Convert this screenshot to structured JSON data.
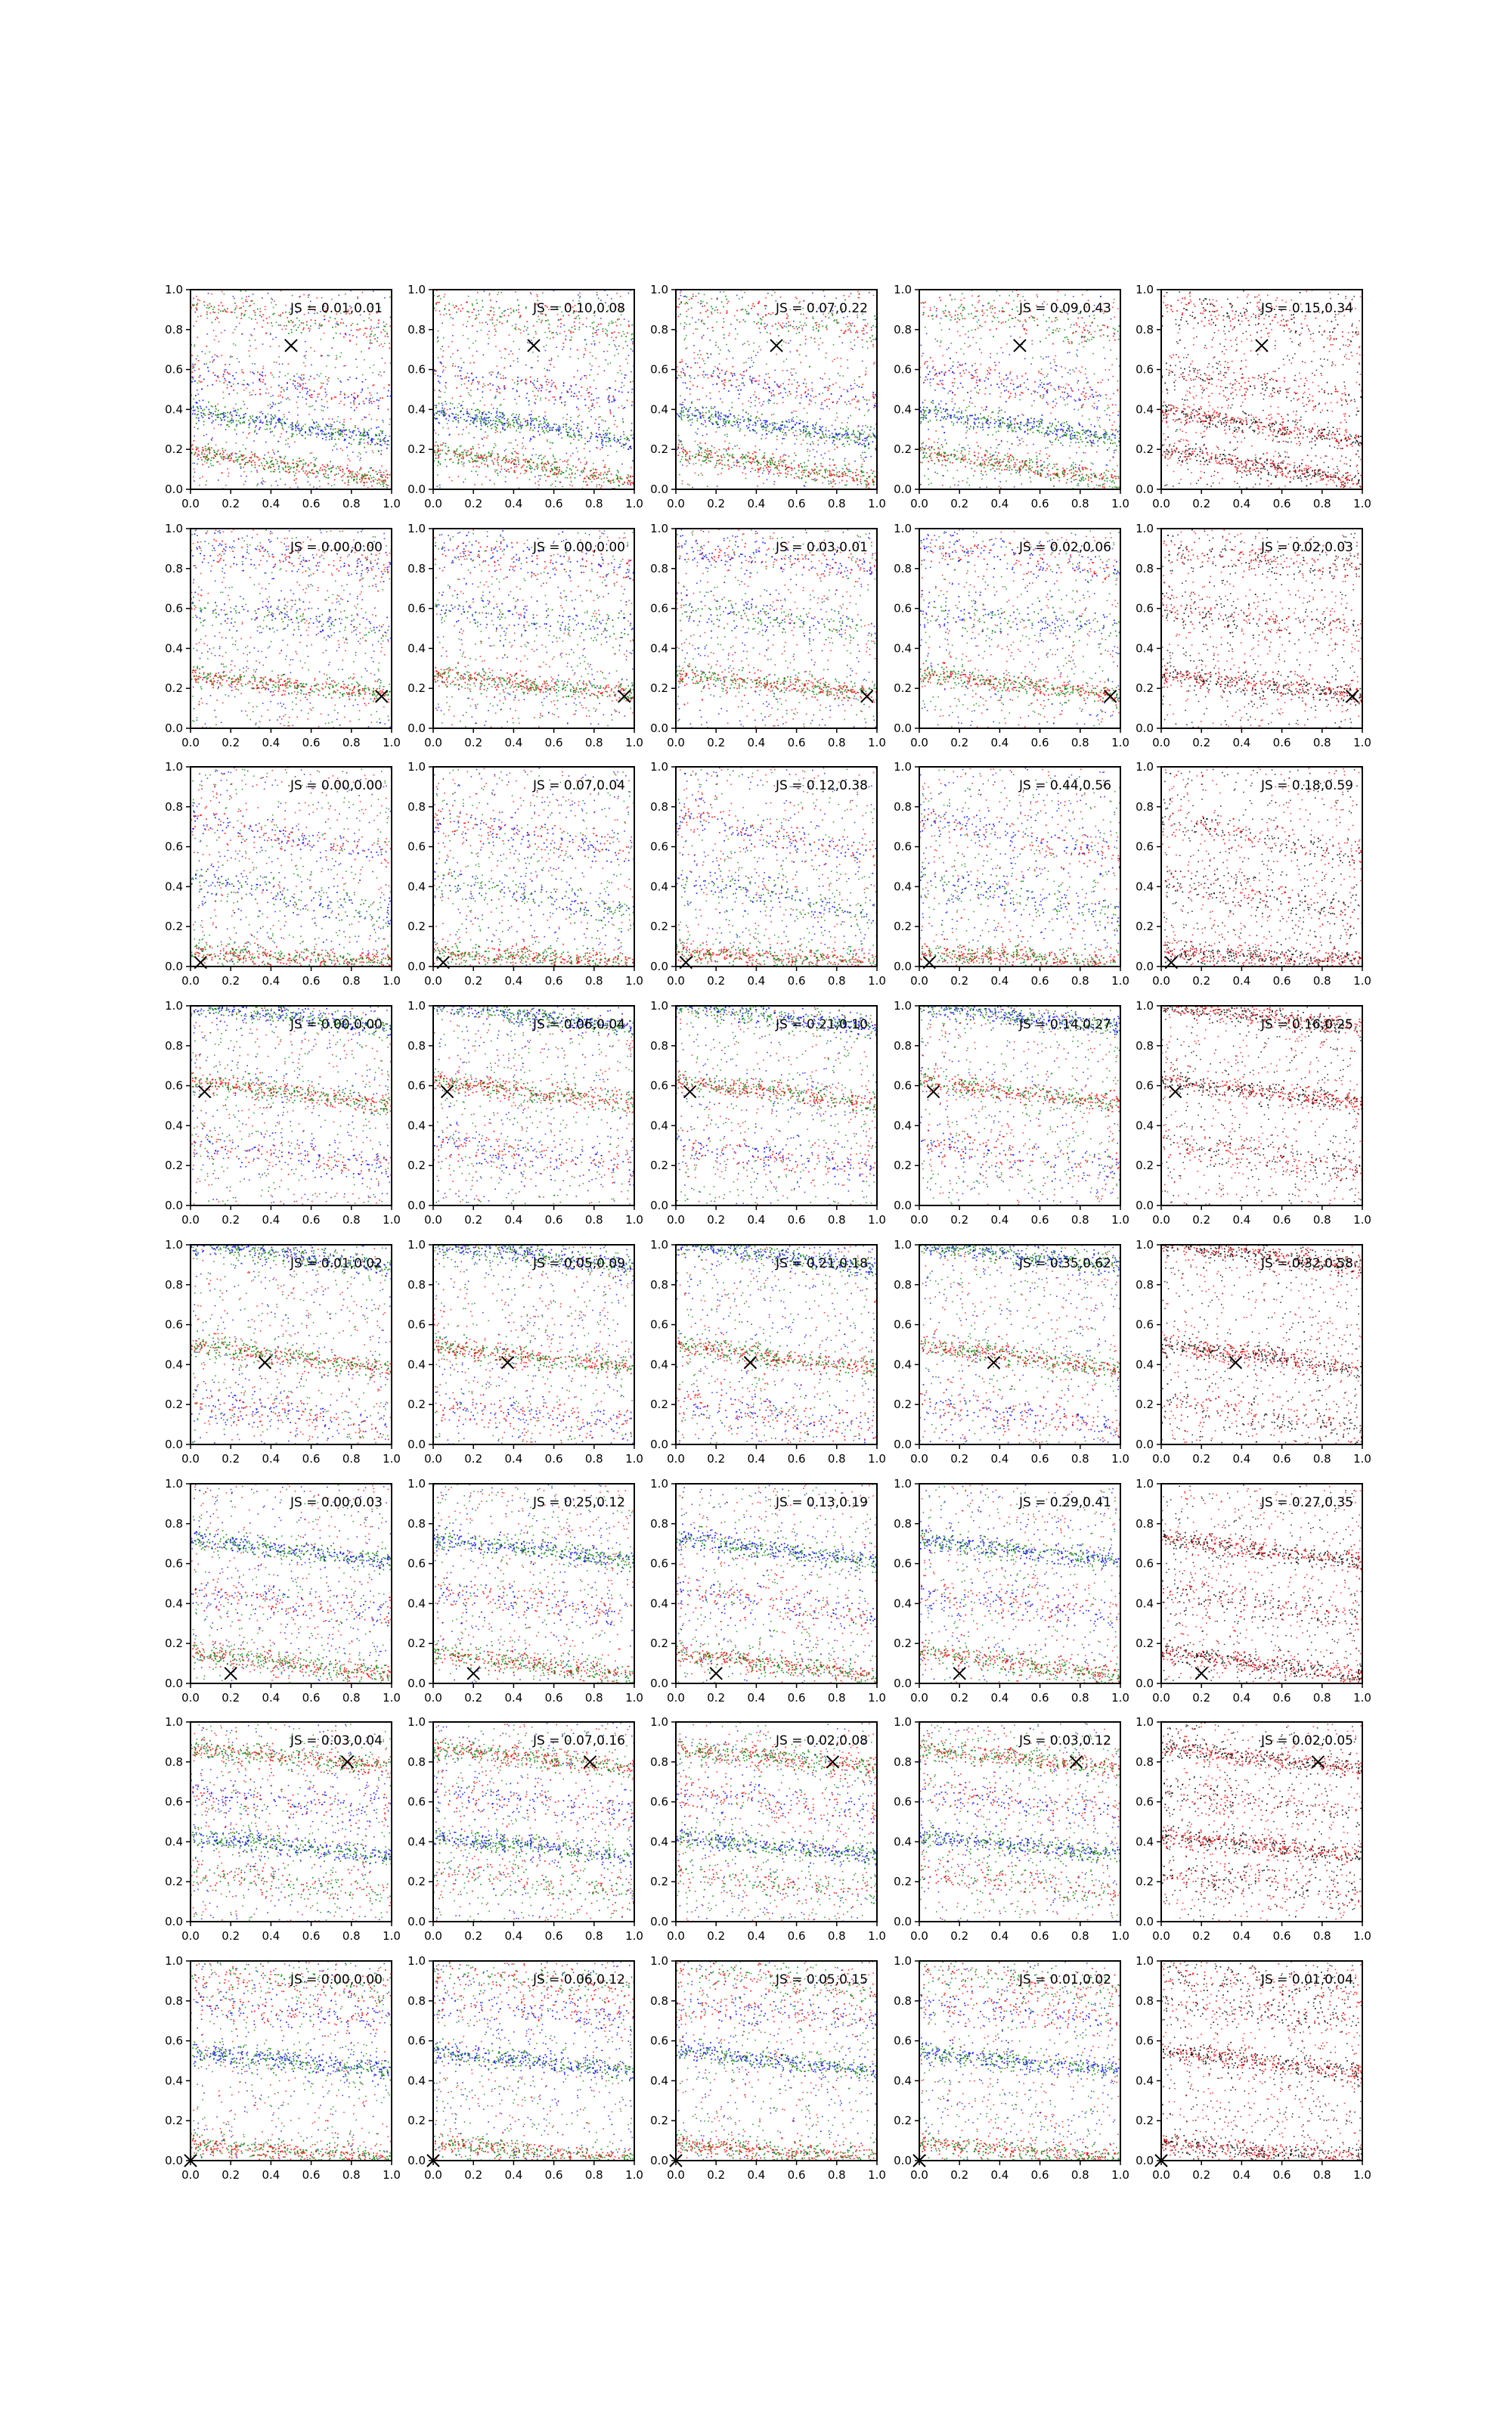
{
  "chart_data": {
    "type": "scatter",
    "layout": {
      "rows": 8,
      "cols": 5
    },
    "xlim": [
      0.0,
      1.0
    ],
    "ylim": [
      0.0,
      1.0
    ],
    "tick_values": [
      0.0,
      0.2,
      0.4,
      0.6,
      0.8,
      1.0
    ],
    "tick_labels": [
      "0.0",
      "0.2",
      "0.4",
      "0.6",
      "0.8",
      "1.0"
    ],
    "grid": false,
    "colors": {
      "red": "#ff0000",
      "green": "#008000",
      "blue": "#0000ff",
      "black": "#000000",
      "marker": "#000000"
    },
    "rows": [
      {
        "marker": [
          0.5,
          0.72
        ],
        "js": [
          "JS = 0.01,0.01",
          "JS = 0.10,0.08",
          "JS = 0.07,0.22",
          "JS = 0.09,0.43",
          "JS = 0.15,0.34"
        ],
        "bands": [
          [
            0.12,
            -0.15,
            "strong"
          ],
          [
            0.32,
            -0.15,
            "strong"
          ],
          [
            0.52,
            -0.15,
            "weak"
          ],
          [
            0.85,
            -0.15,
            "weak"
          ]
        ]
      },
      {
        "marker": [
          0.95,
          0.16
        ],
        "js": [
          "JS = 0.00,0.00",
          "JS = 0.00,0.00",
          "JS = 0.03,0.01",
          "JS = 0.02,0.06",
          "JS = 0.02,0.03"
        ],
        "bands": [
          [
            0.22,
            -0.1,
            "strong"
          ],
          [
            0.55,
            -0.1,
            "weak"
          ],
          [
            0.85,
            -0.1,
            "weak"
          ]
        ]
      },
      {
        "marker": [
          0.05,
          0.02
        ],
        "js": [
          "JS = 0.00,0.00",
          "JS = 0.07,0.04",
          "JS = 0.12,0.38",
          "JS = 0.44,0.56",
          "JS = 0.18,0.59"
        ],
        "bands": [
          [
            0.05,
            -0.05,
            "strong"
          ],
          [
            0.35,
            -0.2,
            "weak"
          ],
          [
            0.65,
            -0.2,
            "weak"
          ]
        ]
      },
      {
        "marker": [
          0.07,
          0.57
        ],
        "js": [
          "JS = 0.00,0.00",
          "JS = 0.06,0.04",
          "JS = 0.21,0.10",
          "JS = 0.14,0.27",
          "JS = 0.16,0.25"
        ],
        "bands": [
          [
            0.57,
            -0.12,
            "strong"
          ],
          [
            0.95,
            -0.12,
            "strong"
          ],
          [
            0.25,
            -0.12,
            "weak"
          ]
        ]
      },
      {
        "marker": [
          0.37,
          0.41
        ],
        "js": [
          "JS = 0.01,0.02",
          "JS = 0.05,0.09",
          "JS = 0.21,0.18",
          "JS = 0.35,0.62",
          "JS = 0.32,0.58"
        ],
        "bands": [
          [
            0.44,
            -0.12,
            "strong"
          ],
          [
            0.95,
            -0.12,
            "strong"
          ],
          [
            0.15,
            -0.12,
            "weak"
          ]
        ]
      },
      {
        "marker": [
          0.2,
          0.05
        ],
        "js": [
          "JS = 0.00,0.03",
          "JS = 0.25,0.12",
          "JS = 0.13,0.19",
          "JS = 0.29,0.41",
          "JS = 0.27,0.35"
        ],
        "bands": [
          [
            0.1,
            -0.12,
            "strong"
          ],
          [
            0.67,
            -0.12,
            "strong"
          ],
          [
            0.4,
            -0.12,
            "weak"
          ]
        ]
      },
      {
        "marker": [
          0.78,
          0.8
        ],
        "js": [
          "JS = 0.03,0.04",
          "JS = 0.07,0.16",
          "JS = 0.02,0.08",
          "JS = 0.03,0.12",
          "JS = 0.02,0.05"
        ],
        "bands": [
          [
            0.82,
            -0.1,
            "strong"
          ],
          [
            0.38,
            -0.1,
            "strong"
          ],
          [
            0.6,
            -0.1,
            "weak"
          ],
          [
            0.2,
            -0.1,
            "weak"
          ]
        ]
      },
      {
        "marker": [
          0.0,
          0.0
        ],
        "js": [
          "JS = 0.00,0.00",
          "JS = 0.06,0.12",
          "JS = 0.05,0.15",
          "JS = 0.01,0.02",
          "JS = 0.01,0.04"
        ],
        "bands": [
          [
            0.05,
            -0.08,
            "strong"
          ],
          [
            0.5,
            -0.1,
            "strong"
          ],
          [
            0.75,
            -0.1,
            "weak"
          ],
          [
            0.9,
            -0.1,
            "weak"
          ]
        ]
      }
    ],
    "columns": [
      {
        "palette": [
          "red",
          "green",
          "blue"
        ]
      },
      {
        "palette": [
          "red",
          "green",
          "blue"
        ]
      },
      {
        "palette": [
          "red",
          "green",
          "blue"
        ]
      },
      {
        "palette": [
          "red",
          "green",
          "blue"
        ]
      },
      {
        "palette": [
          "red",
          "black"
        ]
      }
    ]
  }
}
